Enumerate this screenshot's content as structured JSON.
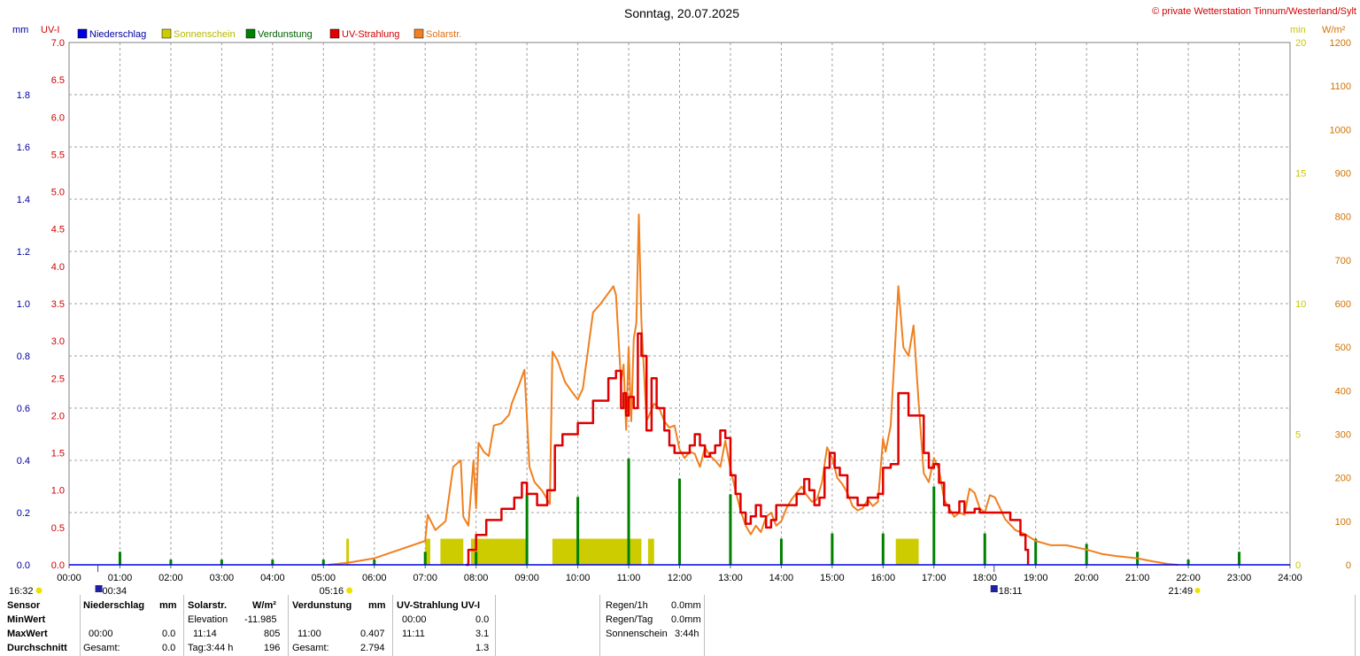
{
  "title": "Sonntag, 20.07.2025",
  "copyright": "© private Wetterstation Tinnum/Westerland/Sylt",
  "axis_units": {
    "mm": "mm",
    "uvi": "UV-I",
    "min": "min",
    "wm2": "W/m²"
  },
  "legend": [
    {
      "label": "Niederschlag",
      "color": "#0000e0",
      "text_color": "#0000a0"
    },
    {
      "label": "Sonnenschein",
      "color": "#cccc00",
      "text_color": "#b8b800"
    },
    {
      "label": "Verdunstung",
      "color": "#008000",
      "text_color": "#006000"
    },
    {
      "label": "UV-Strahlung",
      "color": "#e00000",
      "text_color": "#d00000"
    },
    {
      "label": "Solarstr.",
      "color": "#f08020",
      "text_color": "#e07010"
    }
  ],
  "markers": {
    "moonrise_prev": "16:32",
    "moonrise": "00:34",
    "sunrise": "05:16",
    "moonset": "18:11",
    "sunset": "21:49"
  },
  "chart_data": {
    "type": "line",
    "x_unit": "time",
    "x_ticks": [
      "00:00",
      "01:00",
      "02:00",
      "03:00",
      "04:00",
      "05:00",
      "06:00",
      "07:00",
      "08:00",
      "09:00",
      "10:00",
      "11:00",
      "12:00",
      "13:00",
      "14:00",
      "15:00",
      "16:00",
      "17:00",
      "18:00",
      "19:00",
      "20:00",
      "21:00",
      "22:00",
      "23:00",
      "24:00"
    ],
    "xlim": [
      0,
      24
    ],
    "axes": {
      "mm": {
        "range": [
          0,
          2.0
        ],
        "ticks": [
          "0.0",
          "0.2",
          "0.4",
          "0.6",
          "0.8",
          "1.0",
          "1.2",
          "1.4",
          "1.6",
          "1.8"
        ],
        "color": "#0000a0"
      },
      "uvi": {
        "range": [
          0,
          7.0
        ],
        "ticks": [
          "0.0",
          "0.5",
          "1.0",
          "1.5",
          "2.0",
          "2.5",
          "3.0",
          "3.5",
          "4.0",
          "4.5",
          "5.0",
          "5.5",
          "6.0",
          "6.5",
          "7.0"
        ],
        "color": "#d00000"
      },
      "min": {
        "range": [
          0,
          20
        ],
        "ticks": [
          "0",
          "5",
          "10",
          "15",
          "20"
        ],
        "color": "#c8c800"
      },
      "wm2": {
        "range": [
          0,
          1200
        ],
        "ticks": [
          "0",
          "100",
          "200",
          "300",
          "400",
          "500",
          "600",
          "700",
          "800",
          "900",
          "1000",
          "1100",
          "1200"
        ],
        "color": "#d07000"
      }
    },
    "series": [
      {
        "name": "Solarstr.",
        "unit": "W/m²",
        "color": "#f08020",
        "points": [
          [
            5.1,
            0
          ],
          [
            5.5,
            5
          ],
          [
            6.0,
            15
          ],
          [
            6.5,
            35
          ],
          [
            7.0,
            55
          ],
          [
            7.05,
            115
          ],
          [
            7.2,
            80
          ],
          [
            7.4,
            100
          ],
          [
            7.55,
            225
          ],
          [
            7.7,
            240
          ],
          [
            7.75,
            110
          ],
          [
            7.85,
            90
          ],
          [
            7.95,
            240
          ],
          [
            8.0,
            130
          ],
          [
            8.05,
            280
          ],
          [
            8.15,
            260
          ],
          [
            8.25,
            250
          ],
          [
            8.35,
            320
          ],
          [
            8.5,
            325
          ],
          [
            8.65,
            345
          ],
          [
            8.7,
            370
          ],
          [
            8.85,
            415
          ],
          [
            8.95,
            448
          ],
          [
            9.05,
            225
          ],
          [
            9.15,
            190
          ],
          [
            9.3,
            170
          ],
          [
            9.45,
            140
          ],
          [
            9.5,
            490
          ],
          [
            9.6,
            470
          ],
          [
            9.75,
            420
          ],
          [
            9.9,
            395
          ],
          [
            10.0,
            380
          ],
          [
            10.1,
            405
          ],
          [
            10.3,
            580
          ],
          [
            10.45,
            600
          ],
          [
            10.7,
            640
          ],
          [
            10.75,
            620
          ],
          [
            10.85,
            420
          ],
          [
            10.9,
            460
          ],
          [
            10.95,
            310
          ],
          [
            11.0,
            500
          ],
          [
            11.05,
            330
          ],
          [
            11.1,
            520
          ],
          [
            11.15,
            555
          ],
          [
            11.2,
            805
          ],
          [
            11.25,
            560
          ],
          [
            11.35,
            330
          ],
          [
            11.5,
            370
          ],
          [
            11.6,
            360
          ],
          [
            11.7,
            330
          ],
          [
            11.8,
            315
          ],
          [
            11.9,
            320
          ],
          [
            12.0,
            265
          ],
          [
            12.1,
            245
          ],
          [
            12.2,
            260
          ],
          [
            12.3,
            255
          ],
          [
            12.4,
            225
          ],
          [
            12.5,
            270
          ],
          [
            12.6,
            250
          ],
          [
            12.7,
            240
          ],
          [
            12.8,
            225
          ],
          [
            12.9,
            285
          ],
          [
            13.0,
            220
          ],
          [
            13.1,
            170
          ],
          [
            13.2,
            125
          ],
          [
            13.3,
            90
          ],
          [
            13.4,
            70
          ],
          [
            13.5,
            90
          ],
          [
            13.6,
            75
          ],
          [
            13.7,
            110
          ],
          [
            13.8,
            120
          ],
          [
            13.9,
            90
          ],
          [
            14.0,
            100
          ],
          [
            14.1,
            130
          ],
          [
            14.2,
            150
          ],
          [
            14.3,
            165
          ],
          [
            14.4,
            180
          ],
          [
            14.5,
            160
          ],
          [
            14.6,
            145
          ],
          [
            14.7,
            150
          ],
          [
            14.8,
            190
          ],
          [
            14.9,
            270
          ],
          [
            15.0,
            245
          ],
          [
            15.1,
            200
          ],
          [
            15.2,
            185
          ],
          [
            15.3,
            165
          ],
          [
            15.4,
            135
          ],
          [
            15.5,
            125
          ],
          [
            15.6,
            130
          ],
          [
            15.7,
            150
          ],
          [
            15.8,
            135
          ],
          [
            15.9,
            145
          ],
          [
            16.0,
            290
          ],
          [
            16.05,
            260
          ],
          [
            16.15,
            320
          ],
          [
            16.3,
            640
          ],
          [
            16.4,
            500
          ],
          [
            16.5,
            480
          ],
          [
            16.6,
            550
          ],
          [
            16.7,
            370
          ],
          [
            16.8,
            210
          ],
          [
            16.9,
            190
          ],
          [
            17.0,
            245
          ],
          [
            17.1,
            220
          ],
          [
            17.2,
            150
          ],
          [
            17.3,
            130
          ],
          [
            17.4,
            110
          ],
          [
            17.5,
            120
          ],
          [
            17.6,
            115
          ],
          [
            17.7,
            175
          ],
          [
            17.8,
            165
          ],
          [
            17.9,
            130
          ],
          [
            18.0,
            120
          ],
          [
            18.1,
            160
          ],
          [
            18.2,
            155
          ],
          [
            18.3,
            130
          ],
          [
            18.4,
            105
          ],
          [
            18.6,
            80
          ],
          [
            18.8,
            70
          ],
          [
            19.0,
            55
          ],
          [
            19.3,
            45
          ],
          [
            19.6,
            45
          ],
          [
            20.0,
            35
          ],
          [
            20.3,
            25
          ],
          [
            20.6,
            20
          ],
          [
            21.0,
            15
          ],
          [
            21.3,
            8
          ],
          [
            21.6,
            2
          ],
          [
            21.8,
            0
          ]
        ]
      },
      {
        "name": "UV-Strahlung",
        "unit": "UV-I",
        "color": "#e00000",
        "points": [
          [
            7.8,
            0
          ],
          [
            7.85,
            0.2
          ],
          [
            8.0,
            0.4
          ],
          [
            8.2,
            0.6
          ],
          [
            8.5,
            0.75
          ],
          [
            8.75,
            0.9
          ],
          [
            8.9,
            1.1
          ],
          [
            9.0,
            0.95
          ],
          [
            9.2,
            0.8
          ],
          [
            9.35,
            0.8
          ],
          [
            9.4,
            1.0
          ],
          [
            9.55,
            1.6
          ],
          [
            9.7,
            1.75
          ],
          [
            10.0,
            1.9
          ],
          [
            10.3,
            2.2
          ],
          [
            10.6,
            2.5
          ],
          [
            10.75,
            2.6
          ],
          [
            10.85,
            2.1
          ],
          [
            10.9,
            2.3
          ],
          [
            10.95,
            2.0
          ],
          [
            11.0,
            2.25
          ],
          [
            11.1,
            2.1
          ],
          [
            11.18,
            3.1
          ],
          [
            11.25,
            2.8
          ],
          [
            11.35,
            1.8
          ],
          [
            11.45,
            2.5
          ],
          [
            11.55,
            2.1
          ],
          [
            11.7,
            1.8
          ],
          [
            11.8,
            1.6
          ],
          [
            11.9,
            1.5
          ],
          [
            12.0,
            1.5
          ],
          [
            12.2,
            1.6
          ],
          [
            12.3,
            1.75
          ],
          [
            12.4,
            1.6
          ],
          [
            12.5,
            1.45
          ],
          [
            12.6,
            1.5
          ],
          [
            12.7,
            1.6
          ],
          [
            12.8,
            1.8
          ],
          [
            12.9,
            1.7
          ],
          [
            13.0,
            1.2
          ],
          [
            13.1,
            0.95
          ],
          [
            13.2,
            0.7
          ],
          [
            13.3,
            0.55
          ],
          [
            13.4,
            0.65
          ],
          [
            13.5,
            0.8
          ],
          [
            13.6,
            0.65
          ],
          [
            13.7,
            0.5
          ],
          [
            13.8,
            0.6
          ],
          [
            13.9,
            0.8
          ],
          [
            14.1,
            0.8
          ],
          [
            14.3,
            0.95
          ],
          [
            14.45,
            1.15
          ],
          [
            14.55,
            1.0
          ],
          [
            14.65,
            0.8
          ],
          [
            14.75,
            0.9
          ],
          [
            14.85,
            1.3
          ],
          [
            14.95,
            1.5
          ],
          [
            15.05,
            1.3
          ],
          [
            15.15,
            1.2
          ],
          [
            15.3,
            0.9
          ],
          [
            15.5,
            0.8
          ],
          [
            15.7,
            0.9
          ],
          [
            15.9,
            0.95
          ],
          [
            16.0,
            1.3
          ],
          [
            16.15,
            1.35
          ],
          [
            16.3,
            2.3
          ],
          [
            16.5,
            2.0
          ],
          [
            16.7,
            2.0
          ],
          [
            16.8,
            1.5
          ],
          [
            16.9,
            1.3
          ],
          [
            17.0,
            1.35
          ],
          [
            17.1,
            1.1
          ],
          [
            17.2,
            0.8
          ],
          [
            17.3,
            0.7
          ],
          [
            17.5,
            0.85
          ],
          [
            17.6,
            0.7
          ],
          [
            17.8,
            0.75
          ],
          [
            17.9,
            0.7
          ],
          [
            18.0,
            0.7
          ],
          [
            18.3,
            0.7
          ],
          [
            18.5,
            0.6
          ],
          [
            18.7,
            0.4
          ],
          [
            18.8,
            0.2
          ],
          [
            18.85,
            0
          ]
        ]
      },
      {
        "name": "Sonnenschein",
        "unit": "min",
        "color": "#cccc00",
        "intervals": [
          [
            5.45,
            5.5,
            1.0
          ],
          [
            7.0,
            7.1,
            1.0
          ],
          [
            7.3,
            7.75,
            1.0
          ],
          [
            7.9,
            9.0,
            1.0
          ],
          [
            9.5,
            11.25,
            1.0
          ],
          [
            11.38,
            11.5,
            1.0
          ],
          [
            16.25,
            16.7,
            1.0
          ]
        ]
      },
      {
        "name": "Verdunstung",
        "unit": "mm",
        "color": "#008000",
        "bars": [
          [
            1.0,
            0.05
          ],
          [
            2.0,
            0.02
          ],
          [
            3.0,
            0.02
          ],
          [
            4.0,
            0.02
          ],
          [
            5.0,
            0.02
          ],
          [
            6.0,
            0.02
          ],
          [
            7.0,
            0.05
          ],
          [
            8.0,
            0.05
          ],
          [
            9.0,
            0.27
          ],
          [
            10.0,
            0.26
          ],
          [
            11.0,
            0.407
          ],
          [
            12.0,
            0.33
          ],
          [
            13.0,
            0.27
          ],
          [
            14.0,
            0.1
          ],
          [
            15.0,
            0.12
          ],
          [
            16.0,
            0.12
          ],
          [
            17.0,
            0.3
          ],
          [
            18.0,
            0.12
          ],
          [
            19.0,
            0.1
          ],
          [
            20.0,
            0.08
          ],
          [
            21.0,
            0.05
          ],
          [
            22.0,
            0.02
          ],
          [
            23.0,
            0.05
          ]
        ]
      }
    ],
    "grid": true
  },
  "stats": {
    "headers": {
      "sensor": "Sensor",
      "rain": "Niederschlag",
      "rain_unit": "mm",
      "solar": "Solarstr.",
      "solar_unit": "W/m²",
      "evap": "Verdunstung",
      "evap_unit": "mm",
      "uv": "UV-Strahlung UV-I"
    },
    "rows": {
      "min_label": "MinWert",
      "max_label": "MaxWert",
      "avg_label": "Durchschnitt"
    },
    "solar": {
      "elev_label": "Elevation",
      "elev_value": "-11.985",
      "max_time": "11:14",
      "max_value": "805",
      "tag_label": "Tag:3:44 h",
      "avg_value": "196"
    },
    "rain": {
      "max_time": "00:00",
      "max_value": "0.0",
      "total_label": "Gesamt:",
      "total_value": "0.0"
    },
    "evap": {
      "max_time": "11:00",
      "max_value": "0.407",
      "total_label": "Gesamt:",
      "total_value": "2.794"
    },
    "uv": {
      "min_time": "00:00",
      "min_value": "0.0",
      "max_time": "11:11",
      "max_value": "3.1",
      "avg_value": "1.3"
    },
    "summary": [
      {
        "label": "Regen/1h",
        "value": "0.0mm"
      },
      {
        "label": "Regen/Tag",
        "value": "0.0mm"
      },
      {
        "label": "Sonnenschein",
        "value": "3:44h"
      }
    ]
  }
}
